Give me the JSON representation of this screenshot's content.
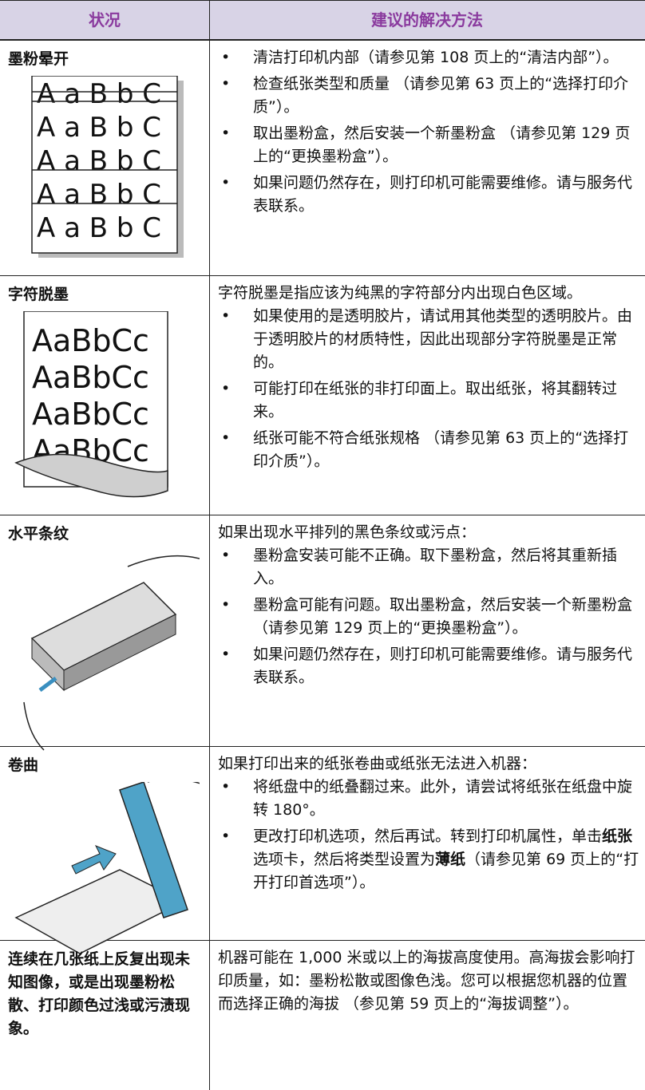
{
  "table": {
    "header": [
      "状况",
      "建议的解决方法"
    ],
    "rows": [
      {
        "title": "墨粉晕开",
        "image_text": [
          "A a B b C",
          "A a B b C",
          "A a B b C",
          "A a B b C",
          "A a B b C"
        ],
        "bullets": [
          "清洁打印机内部（请参见第 108 页上的“清洁内部”）。",
          "检查纸张类型和质量 （请参见第 63 页上的“选择打印介质”）。",
          "取出墨粉盒，然后安装一个新墨粉盒 （请参见第 129 页上的“更换墨粉盒”）。",
          "如果问题仍然存在，则打印机可能需要维修。请与服务代表联系。"
        ]
      },
      {
        "title": "字符脱墨",
        "image_text": [
          "AaBbCc",
          "AaBbCc",
          "AaBbCc",
          "AaBbCc"
        ],
        "intro": "字符脱墨是指应该为纯黑的字符部分内出现白色区域。",
        "bullets": [
          "如果使用的是透明胶片，请试用其他类型的透明胶片。由于透明胶片的材质特性，因此出现部分字符脱墨是正常的。",
          "可能打印在纸张的非打印面上。取出纸张，将其翻转过来。",
          "纸张可能不符合纸张规格 （请参见第 63 页上的“选择打印介质”）。"
        ]
      },
      {
        "title": "水平条纹",
        "intro": "如果出现水平排列的黑色条纹或污点：",
        "bullets": [
          "墨粉盒安装可能不正确。取下墨粉盒，然后将其重新插入。",
          "墨粉盒可能有问题。取出墨粉盒，然后安装一个新墨粉盒 （请参见第 129 页上的“更换墨粉盒”）。",
          "如果问题仍然存在，则打印机可能需要维修。请与服务代表联系。"
        ]
      },
      {
        "title": "卷曲",
        "intro": "如果打印出来的纸张卷曲或纸张无法进入机器：",
        "bullets": [
          "将纸盘中的纸叠翻过来。此外，请尝试将纸张在纸盘中旋转 180°。",
          [
            "更改打印机选项，然后再试。转到打印机属性，单击",
            {
              "bold": "纸张"
            },
            "选项卡，然后将类型设置为",
            {
              "bold": "薄纸"
            },
            "（请参见第 69 页上的“打开打印首选项”）。"
          ]
        ]
      },
      {
        "title": "连续在几张纸上反复出现未知图像，或是出现墨粉松散、打印颜色过浅或污渍现象。",
        "intro": "机器可能在 1,000 米或以上的海拔高度使用。高海拔会影响打印质量，如：墨粉松散或图像色浅。您可以根据您机器的位置而选择正确的海拔 （参见第 59 页上的“海拔调整”）。"
      }
    ]
  }
}
